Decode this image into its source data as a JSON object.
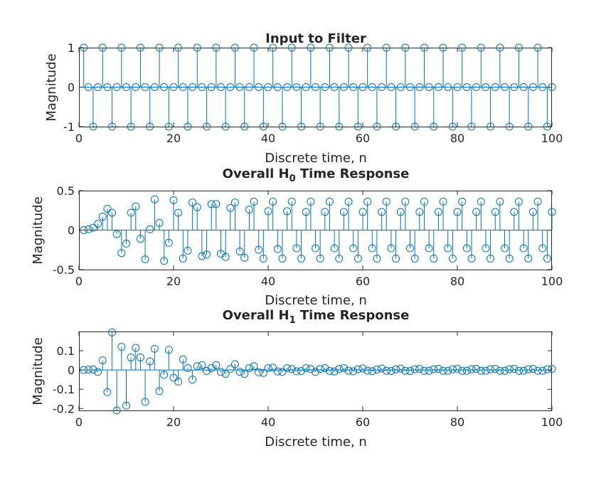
{
  "figure": {
    "background": "#ffffff"
  },
  "chart_data": [
    {
      "type": "stem",
      "title": "Input to Filter",
      "xlabel": "Discrete time, n",
      "ylabel": "Magnitude",
      "xlim": [
        0,
        100
      ],
      "ylim": [
        -1,
        1
      ],
      "xticks": [
        0,
        20,
        40,
        60,
        80,
        100
      ],
      "yticks": [
        -1,
        0,
        1
      ],
      "grid": false,
      "color": "#0072bd",
      "series": [
        {
          "x": [
            1,
            2,
            3,
            4,
            5,
            6,
            7,
            8,
            9,
            10,
            11,
            12,
            13,
            14,
            15,
            16,
            17,
            18,
            19,
            20,
            21,
            22,
            23,
            24,
            25,
            26,
            27,
            28,
            29,
            30,
            31,
            32,
            33,
            34,
            35,
            36,
            37,
            38,
            39,
            40,
            41,
            42,
            43,
            44,
            45,
            46,
            47,
            48,
            49,
            50,
            51,
            52,
            53,
            54,
            55,
            56,
            57,
            58,
            59,
            60,
            61,
            62,
            63,
            64,
            65,
            66,
            67,
            68,
            69,
            70,
            71,
            72,
            73,
            74,
            75,
            76,
            77,
            78,
            79,
            80,
            81,
            82,
            83,
            84,
            85,
            86,
            87,
            88,
            89,
            90,
            91,
            92,
            93,
            94,
            95,
            96,
            97,
            98,
            99,
            100
          ],
          "y": [
            1,
            0,
            -1,
            0,
            1,
            0,
            -1,
            0,
            1,
            0,
            -1,
            0,
            1,
            0,
            -1,
            0,
            1,
            0,
            -1,
            0,
            1,
            0,
            -1,
            0,
            1,
            0,
            -1,
            0,
            1,
            0,
            -1,
            0,
            1,
            0,
            -1,
            0,
            1,
            0,
            -1,
            0,
            1,
            0,
            -1,
            0,
            1,
            0,
            -1,
            0,
            1,
            0,
            -1,
            0,
            1,
            0,
            -1,
            0,
            1,
            0,
            -1,
            0,
            1,
            0,
            -1,
            0,
            1,
            0,
            -1,
            0,
            1,
            0,
            -1,
            0,
            1,
            0,
            -1,
            0,
            1,
            0,
            -1,
            0,
            1,
            0,
            -1,
            0,
            1,
            0,
            -1,
            0,
            1,
            0,
            -1,
            0,
            1,
            0,
            -1,
            0,
            1,
            0,
            -1,
            0
          ]
        }
      ]
    },
    {
      "type": "stem",
      "title": "Overall H",
      "title_subscript": "0",
      "title_suffix": " Time Response",
      "xlabel": "Discrete time, n",
      "ylabel": "Magnitude",
      "xlim": [
        0,
        100
      ],
      "ylim": [
        -0.5,
        0.5
      ],
      "xticks": [
        0,
        20,
        40,
        60,
        80,
        100
      ],
      "yticks": [
        -0.5,
        0,
        0.5
      ],
      "ytick_labels": [
        "-0.5",
        "0",
        "0.5"
      ],
      "grid": false,
      "color": "#0072bd",
      "series": [
        {
          "x": [
            1,
            2,
            3,
            4,
            5,
            6,
            7,
            8,
            9,
            10,
            11,
            12,
            13,
            14,
            15,
            16,
            17,
            18,
            19,
            20,
            21,
            22,
            23,
            24,
            25,
            26,
            27,
            28,
            29,
            30,
            31,
            32,
            33,
            34,
            35,
            36,
            37,
            38,
            39,
            40,
            41,
            42,
            43,
            44,
            45,
            46,
            47,
            48,
            49,
            50,
            51,
            52,
            53,
            54,
            55,
            56,
            57,
            58,
            59,
            60,
            61,
            62,
            63,
            64,
            65,
            66,
            67,
            68,
            69,
            70,
            71,
            72,
            73,
            74,
            75,
            76,
            77,
            78,
            79,
            80,
            81,
            82,
            83,
            84,
            85,
            86,
            87,
            88,
            89,
            90,
            91,
            92,
            93,
            94,
            95,
            96,
            97,
            98,
            99,
            100
          ],
          "y": [
            0,
            0.01,
            0.03,
            0.08,
            0.17,
            0.27,
            0.22,
            -0.05,
            -0.29,
            -0.17,
            0.22,
            0.3,
            -0.11,
            -0.37,
            0.01,
            0.39,
            0.09,
            -0.39,
            -0.16,
            0.38,
            0.22,
            -0.36,
            -0.26,
            0.35,
            0.29,
            -0.33,
            -0.31,
            0.33,
            0.33,
            -0.3,
            -0.34,
            0.28,
            0.35,
            -0.27,
            -0.35,
            0.26,
            0.36,
            -0.25,
            -0.36,
            0.24,
            0.36,
            -0.24,
            -0.36,
            0.24,
            0.36,
            -0.23,
            -0.36,
            0.23,
            0.36,
            -0.23,
            -0.36,
            0.23,
            0.36,
            -0.23,
            -0.36,
            0.23,
            0.36,
            -0.23,
            -0.36,
            0.23,
            0.36,
            -0.23,
            -0.36,
            0.23,
            0.36,
            -0.23,
            -0.36,
            0.23,
            0.36,
            -0.23,
            -0.36,
            0.23,
            0.36,
            -0.23,
            -0.36,
            0.23,
            0.36,
            -0.23,
            -0.36,
            0.23,
            0.36,
            -0.23,
            -0.36,
            0.23,
            0.36,
            -0.23,
            -0.36,
            0.23,
            0.36,
            -0.23,
            -0.36,
            0.23,
            0.36,
            -0.23,
            -0.36,
            0.23,
            0.36,
            -0.23,
            -0.36,
            0.23
          ]
        }
      ]
    },
    {
      "type": "stem",
      "title": "Overall H",
      "title_subscript": "1",
      "title_suffix": " Time Response",
      "xlabel": "Discrete time, n",
      "ylabel": "Magnitude",
      "xlim": [
        0,
        100
      ],
      "ylim": [
        -0.21,
        0.2
      ],
      "xticks": [
        0,
        20,
        40,
        60,
        80,
        100
      ],
      "yticks": [
        -0.2,
        -0.1,
        0,
        0.1
      ],
      "ytick_labels": [
        "-0.2",
        "-0.1",
        "0",
        "0.1"
      ],
      "grid": false,
      "color": "#0072bd",
      "series": [
        {
          "x": [
            1,
            2,
            3,
            4,
            5,
            6,
            7,
            8,
            9,
            10,
            11,
            12,
            13,
            14,
            15,
            16,
            17,
            18,
            19,
            20,
            21,
            22,
            23,
            24,
            25,
            26,
            27,
            28,
            29,
            30,
            31,
            32,
            33,
            34,
            35,
            36,
            37,
            38,
            39,
            40,
            41,
            42,
            43,
            44,
            45,
            46,
            47,
            48,
            49,
            50,
            51,
            52,
            53,
            54,
            55,
            56,
            57,
            58,
            59,
            60,
            61,
            62,
            63,
            64,
            65,
            66,
            67,
            68,
            69,
            70,
            71,
            72,
            73,
            74,
            75,
            76,
            77,
            78,
            79,
            80,
            81,
            82,
            83,
            84,
            85,
            86,
            87,
            88,
            89,
            90,
            91,
            92,
            93,
            94,
            95,
            96,
            97,
            98,
            99,
            100
          ],
          "y": [
            0,
            0.002,
            0.003,
            -0.01,
            0.05,
            -0.115,
            0.195,
            -0.21,
            0.12,
            -0.185,
            0.065,
            0.115,
            0.065,
            -0.165,
            0.045,
            0.11,
            -0.11,
            -0.025,
            0.105,
            -0.04,
            -0.06,
            0.055,
            0.01,
            -0.05,
            0.02,
            0.025,
            -0.005,
            0.01,
            0.025,
            -0.01,
            -0.02,
            0.005,
            0.03,
            -0.01,
            -0.02,
            0.01,
            0.02,
            -0.012,
            -0.015,
            0.01,
            0.012,
            -0.008,
            -0.01,
            0.01,
            0.005,
            -0.007,
            -0.005,
            0.01,
            0.005,
            -0.01,
            0.005,
            0.01,
            -0.005,
            -0.008,
            0.005,
            0.01,
            -0.003,
            -0.007,
            0.004,
            0.008,
            -0.003,
            -0.006,
            0.003,
            0.008,
            -0.004,
            -0.005,
            0.004,
            0.007,
            -0.004,
            -0.005,
            0.004,
            0.006,
            -0.004,
            -0.004,
            0.004,
            0.006,
            -0.004,
            -0.004,
            0.004,
            0.006,
            -0.004,
            -0.004,
            0.004,
            0.006,
            -0.004,
            -0.004,
            0.004,
            0.006,
            -0.004,
            -0.004,
            0.004,
            0.006,
            -0.004,
            -0.004,
            0.004,
            0.006,
            -0.004,
            -0.004,
            0.004,
            0.006
          ]
        }
      ]
    }
  ]
}
